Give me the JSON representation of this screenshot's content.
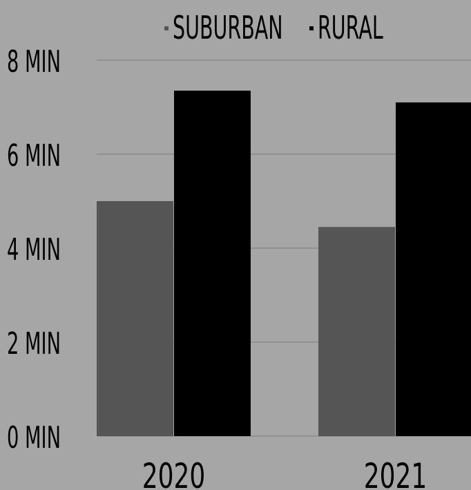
{
  "chart_data": {
    "type": "bar",
    "title": "",
    "xlabel": "",
    "ylabel": "",
    "categories": [
      "2020",
      "2021"
    ],
    "series": [
      {
        "name": "SUBURBAN",
        "values": [
          5.0,
          4.45
        ]
      },
      {
        "name": "RURAL",
        "values": [
          7.35,
          7.1
        ]
      }
    ],
    "ylim": [
      0,
      8
    ],
    "yticks": [
      {
        "value": 0,
        "label": "0 MIN"
      },
      {
        "value": 2,
        "label": "2 MIN"
      },
      {
        "value": 4,
        "label": "4 MIN"
      },
      {
        "value": 6,
        "label": "6 MIN"
      },
      {
        "value": 8,
        "label": "8 MIN"
      }
    ],
    "grid": true,
    "legend_position": "top",
    "colors": {
      "background": "#a6a6a6",
      "gridline": "#7a7a7a",
      "series": [
        "#555555",
        "#000000"
      ]
    }
  }
}
